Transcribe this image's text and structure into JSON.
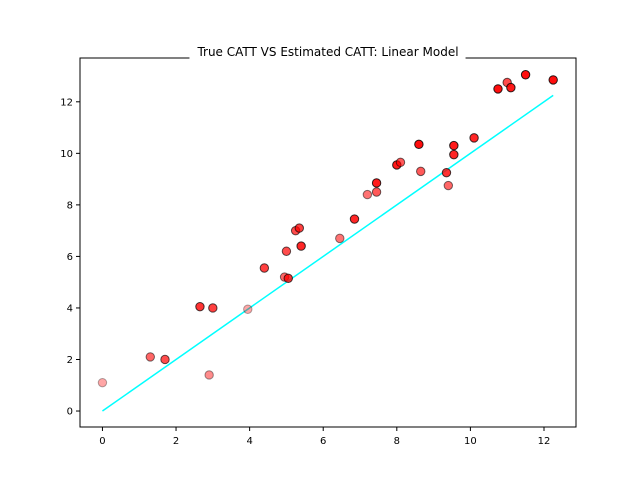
{
  "chart_data": {
    "type": "scatter",
    "title": "True CATT VS Estimated CATT: Linear Model",
    "xlabel": "",
    "ylabel": "",
    "xlim": [
      -0.61,
      12.87
    ],
    "ylim": [
      -0.62,
      13.7
    ],
    "xticks": [
      0,
      2,
      4,
      6,
      8,
      10,
      12
    ],
    "yticks": [
      0,
      2,
      4,
      6,
      8,
      10,
      12
    ],
    "grid": false,
    "reference_line": {
      "x": [
        0,
        12.25
      ],
      "y": [
        0,
        12.25
      ],
      "color": "#00ffff"
    },
    "points": {
      "fill_color": "#ff0000",
      "edge_color": "#000000",
      "x": [
        0.0,
        1.3,
        1.7,
        2.65,
        2.9,
        3.0,
        3.95,
        4.4,
        4.95,
        5.0,
        5.05,
        5.25,
        5.35,
        5.4,
        6.45,
        6.85,
        7.2,
        7.45,
        7.45,
        8.0,
        8.1,
        8.6,
        8.65,
        9.35,
        9.4,
        9.55,
        9.55,
        10.1,
        10.75,
        11.0,
        11.1,
        11.5,
        12.25
      ],
      "y": [
        1.1,
        2.1,
        2.0,
        4.05,
        1.4,
        4.0,
        3.95,
        5.55,
        5.2,
        6.2,
        5.15,
        7.0,
        7.1,
        6.4,
        6.7,
        7.45,
        8.4,
        8.85,
        8.5,
        9.55,
        9.65,
        10.35,
        9.3,
        9.25,
        8.75,
        10.3,
        9.95,
        10.6,
        12.5,
        12.75,
        12.55,
        13.05,
        12.85
      ],
      "alpha": [
        0.35,
        0.6,
        0.7,
        0.8,
        0.45,
        0.75,
        0.35,
        0.75,
        0.6,
        0.7,
        0.8,
        0.7,
        0.75,
        0.85,
        0.55,
        0.85,
        0.55,
        0.9,
        0.65,
        0.9,
        0.65,
        0.95,
        0.65,
        0.8,
        0.6,
        0.9,
        0.85,
        0.85,
        0.95,
        0.7,
        0.9,
        0.95,
        0.95
      ]
    }
  }
}
